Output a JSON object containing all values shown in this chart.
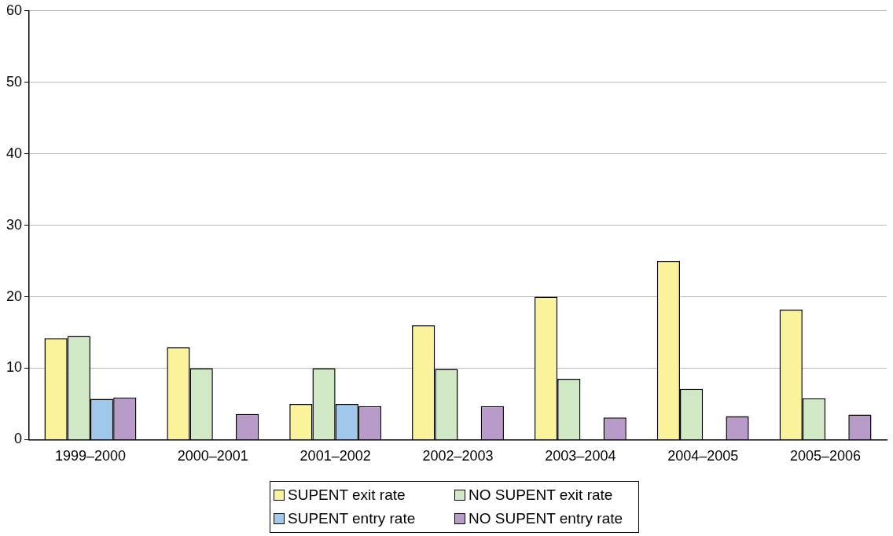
{
  "chart_data": {
    "type": "bar",
    "categories": [
      "1999–2000",
      "2000–2001",
      "2001–2002",
      "2002–2003",
      "2003–2004",
      "2004–2005",
      "2005–2006"
    ],
    "series": [
      {
        "name": "SUPENT exit rate",
        "color": "#faf39b",
        "values": [
          14.2,
          12.9,
          5.0,
          16.0,
          20.0,
          25.0,
          18.2
        ]
      },
      {
        "name": "NO SUPENT exit rate",
        "color": "#d1e8c5",
        "values": [
          14.5,
          10.0,
          10.0,
          9.9,
          8.5,
          7.1,
          5.8
        ]
      },
      {
        "name": "SUPENT entry rate",
        "color": "#9fc8ea",
        "values": [
          5.7,
          null,
          5.0,
          null,
          null,
          null,
          null
        ]
      },
      {
        "name": "NO SUPENT entry rate",
        "color": "#b99bc9",
        "values": [
          5.9,
          3.6,
          4.7,
          4.7,
          3.1,
          3.3,
          3.5
        ]
      }
    ],
    "ylim": [
      0,
      60
    ],
    "yticks": [
      0,
      10,
      20,
      30,
      40,
      50,
      60
    ],
    "grid": "y",
    "legend": "bottom"
  }
}
